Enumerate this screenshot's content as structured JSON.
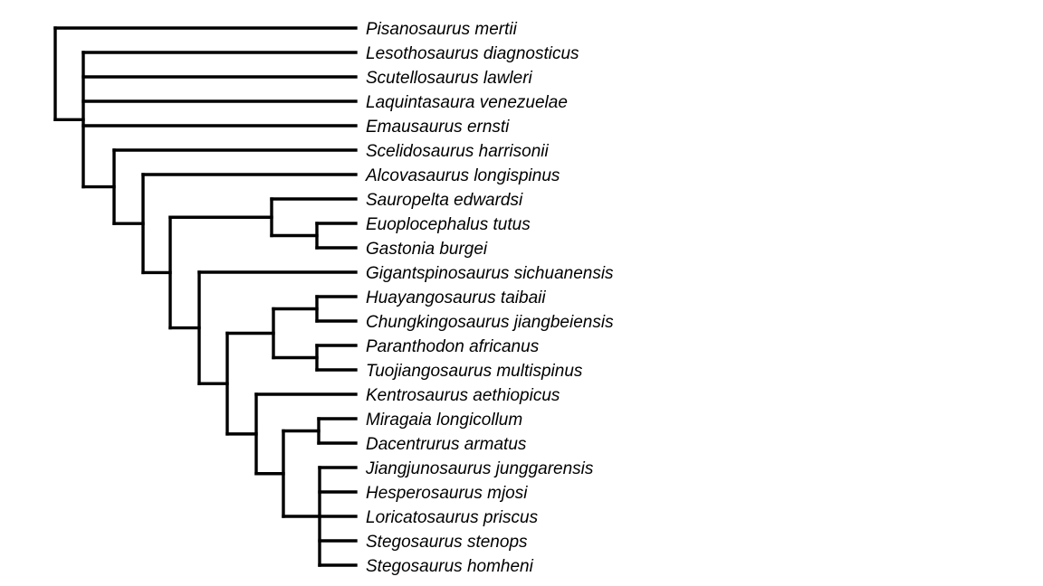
{
  "figure": {
    "type": "cladogram",
    "description": "Phylogenetic tree (strict consensus cladogram) of thyreophoran dinosaurs with 23 terminal taxa, tips right-aligned, no scale bar, no axis text",
    "background_color": "#ffffff",
    "line_color": "#000000",
    "label_color": "#000000",
    "label_style": "italic"
  },
  "taxa": [
    "Pisanosaurus mertii",
    "Lesothosaurus diagnosticus",
    "Scutellosaurus lawleri",
    "Laquintasaura venezuelae",
    "Emausaurus ernsti",
    "Scelidosaurus harrisonii",
    "Alcovasaurus longispinus",
    "Sauropelta edwardsi",
    "Euoplocephalus tutus",
    "Gastonia burgei",
    "Gigantspinosaurus sichuanensis",
    "Huayangosaurus taibaii",
    "Chungkingosaurus jiangbeiensis",
    "Paranthodon africanus",
    "Tuojiangosaurus multispinus",
    "Kentrosaurus aethiopicus",
    "Miragaia longicollum",
    "Dacentrurus armatus",
    "Jiangjunosaurus junggarensis",
    "Hesperosaurus mjosi",
    "Loricatosaurus priscus",
    "Stegosaurus stenops",
    "Stegosaurus homheni"
  ],
  "tree": {
    "id": "root",
    "children": [
      "Pisanosaurus mertii",
      {
        "id": "n2",
        "children": [
          "Lesothosaurus diagnosticus",
          "Scutellosaurus lawleri",
          "Laquintasaura venezuelae",
          "Emausaurus ernsti",
          {
            "id": "n3",
            "children": [
              "Scelidosaurus harrisonii",
              {
                "id": "n4",
                "children": [
                  "Alcovasaurus longispinus",
                  {
                    "id": "n5",
                    "children": [
                      {
                        "id": "anky",
                        "children": [
                          "Sauropelta edwardsi",
                          {
                            "id": "anky2",
                            "children": [
                              "Euoplocephalus tutus",
                              "Gastonia burgei"
                            ]
                          }
                        ]
                      },
                      {
                        "id": "n6",
                        "children": [
                          "Gigantspinosaurus sichuanensis",
                          {
                            "id": "n7",
                            "children": [
                              {
                                "id": "stegA",
                                "children": [
                                  {
                                    "id": "stegHC",
                                    "children": [
                                      "Huayangosaurus taibaii",
                                      "Chungkingosaurus jiangbeiensis"
                                    ]
                                  },
                                  {
                                    "id": "stegPT",
                                    "children": [
                                      "Paranthodon africanus",
                                      "Tuojiangosaurus multispinus"
                                    ]
                                  }
                                ]
                              },
                              {
                                "id": "n8",
                                "children": [
                                  "Kentrosaurus aethiopicus",
                                  {
                                    "id": "n9",
                                    "children": [
                                      {
                                        "id": "mirDac",
                                        "children": [
                                          "Miragaia longicollum",
                                          "Dacentrurus armatus"
                                        ]
                                      },
                                      {
                                        "id": "n10",
                                        "children": [
                                          "Jiangjunosaurus junggarensis",
                                          "Hesperosaurus mjosi",
                                          "Loricatosaurus priscus",
                                          "Stegosaurus stenops",
                                          "Stegosaurus homheni"
                                        ]
                                      }
                                    ]
                                  }
                                ]
                              }
                            ]
                          }
                        ]
                      }
                    ]
                  }
                ]
              }
            ]
          }
        ]
      }
    ]
  }
}
